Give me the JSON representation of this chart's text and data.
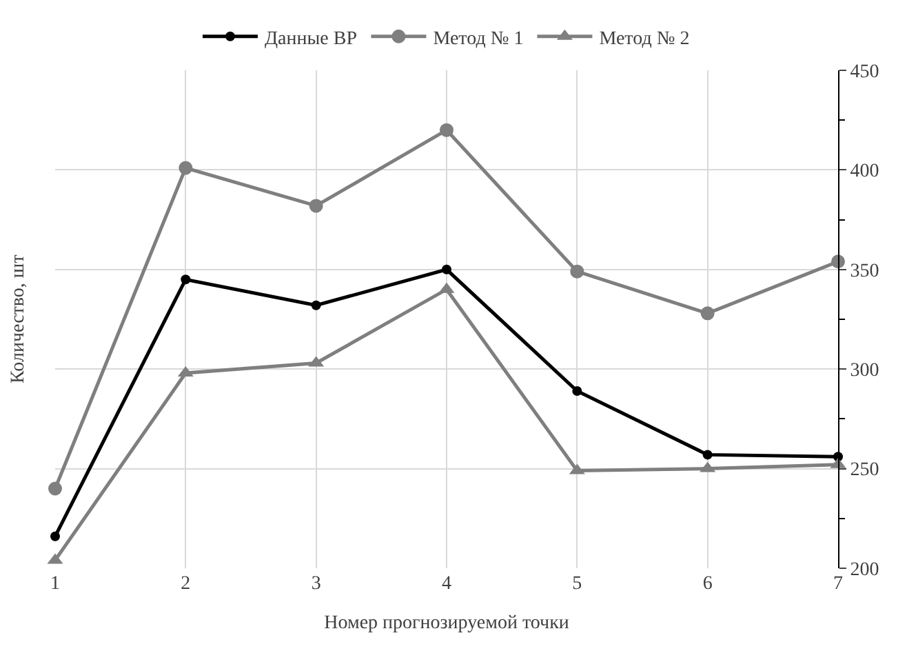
{
  "chart_data": {
    "type": "line",
    "xlabel": "Номер прогнозируемой точки",
    "ylabel": "Количество, шт",
    "x": [
      1,
      2,
      3,
      4,
      5,
      6,
      7
    ],
    "series": [
      {
        "name": "Данные ВР",
        "color": "#000000",
        "marker": "circle",
        "values": [
          216,
          345,
          332,
          350,
          289,
          257,
          256
        ]
      },
      {
        "name": "Метод № 1",
        "color": "#7f7f7f",
        "marker": "circle",
        "values": [
          240,
          401,
          382,
          420,
          349,
          328,
          354
        ]
      },
      {
        "name": "Метод № 2",
        "color": "#7f7f7f",
        "marker": "triangle",
        "values": [
          204,
          298,
          303,
          340,
          249,
          250,
          252
        ]
      }
    ],
    "xlim": [
      1,
      7
    ],
    "xticks": [
      1,
      2,
      3,
      4,
      5,
      6,
      7
    ],
    "ylim": [
      200,
      450
    ],
    "yticks": [
      200,
      250,
      300,
      350,
      400,
      450
    ],
    "grid": true,
    "legend": "top",
    "line_style": "solid"
  }
}
